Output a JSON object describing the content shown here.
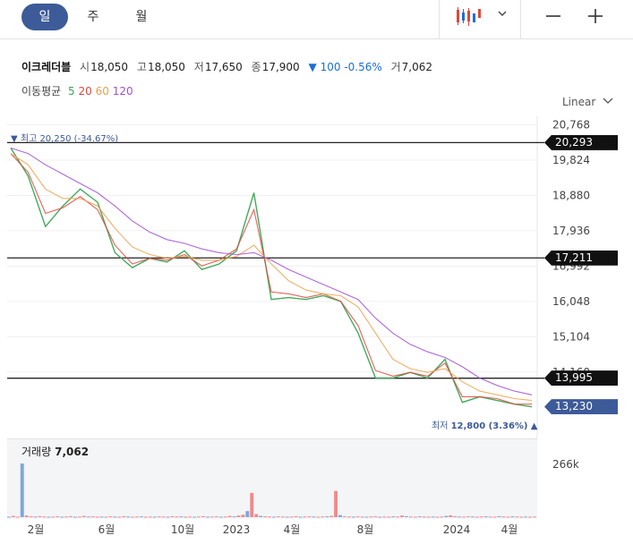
{
  "tabs": [
    {
      "label": "일",
      "active": true
    },
    {
      "label": "주",
      "active": false
    },
    {
      "label": "월",
      "active": false
    }
  ],
  "toolbar": {
    "chart_type_icon": "candlestick-icon",
    "dropdown_icon": "chevron-down-icon",
    "zoom_out_icon": "minus-icon",
    "zoom_in_icon": "plus-icon"
  },
  "quote": {
    "name": "이크레더블",
    "open_label": "시",
    "open": "18,050",
    "high_label": "고",
    "high": "18,050",
    "low_label": "저",
    "low": "17,650",
    "close_label": "종",
    "close": "17,900",
    "change_arrow": "▼",
    "change": "100",
    "change_pct": "-0.56%",
    "volume_label": "거",
    "volume": "7,062"
  },
  "moving_averages": {
    "label": "이동평균",
    "items": [
      {
        "period": "5",
        "color": "#3aa655"
      },
      {
        "period": "20",
        "color": "#e0463c"
      },
      {
        "period": "60",
        "color": "#f0a04b"
      },
      {
        "period": "120",
        "color": "#a24fd6"
      }
    ]
  },
  "scale_mode": "Linear",
  "price_tags": [
    {
      "value": "20,293",
      "price": 20293,
      "current": false
    },
    {
      "value": "17,211",
      "price": 17211,
      "current": false
    },
    {
      "value": "13,995",
      "price": 13995,
      "current": false
    },
    {
      "value": "13,230",
      "price": 13230,
      "current": true
    }
  ],
  "annotations": {
    "high": "▼ 최고 20,250 (-34.67%)",
    "low_label": "최저",
    "low_value": "12,800 (3.36%)",
    "low_arrow": "▲"
  },
  "volume_panel": {
    "label": "거래량",
    "value": "7,062",
    "axis_tick": "266k"
  },
  "colors": {
    "accent": "#3d5a99",
    "up": "#e0463c",
    "down": "#1a6fd6"
  },
  "chart_data": {
    "type": "line",
    "y_axis_ticks": [
      "20,768",
      "19,824",
      "18,880",
      "17,936",
      "16,992",
      "16,048",
      "15,104",
      "14,160"
    ],
    "y_axis_values": [
      20768,
      19824,
      18880,
      17936,
      16992,
      16048,
      15104,
      14160
    ],
    "ylim": [
      12672,
      20900
    ],
    "x_axis_ticks": [
      "2월",
      "6월",
      "10월",
      "2023",
      "4월",
      "8월",
      "2024",
      "4월"
    ],
    "series": [
      {
        "name": "5",
        "values": [
          20150,
          19400,
          18050,
          18600,
          19050,
          18700,
          17350,
          16950,
          17200,
          17100,
          17400,
          16900,
          17050,
          17400,
          18950,
          16100,
          16150,
          16100,
          16200,
          16050,
          15200,
          14000,
          14000,
          14150,
          14000,
          14500,
          13350,
          13500,
          13400,
          13300,
          13230
        ]
      },
      {
        "name": "20",
        "values": [
          20000,
          19500,
          18400,
          18550,
          18850,
          18500,
          17550,
          17050,
          17200,
          17150,
          17300,
          17000,
          17150,
          17450,
          18500,
          16300,
          16250,
          16150,
          16250,
          16050,
          15400,
          14200,
          14050,
          14150,
          14050,
          14400,
          13500,
          13500,
          13450,
          13300,
          13300
        ]
      },
      {
        "name": "60",
        "values": [
          20000,
          19700,
          19050,
          18800,
          18800,
          18600,
          18000,
          17500,
          17300,
          17200,
          17250,
          17150,
          17150,
          17250,
          17550,
          17050,
          16600,
          16350,
          16250,
          16200,
          15900,
          15200,
          14500,
          14250,
          14150,
          14250,
          13900,
          13650,
          13550,
          13450,
          13400
        ]
      },
      {
        "name": "120",
        "values": [
          20150,
          20000,
          19700,
          19450,
          19200,
          18950,
          18600,
          18200,
          17900,
          17700,
          17600,
          17450,
          17350,
          17300,
          17350,
          17150,
          16900,
          16700,
          16500,
          16300,
          16100,
          15600,
          15200,
          14900,
          14700,
          14550,
          14300,
          14000,
          13800,
          13650,
          13550
        ]
      }
    ],
    "volume_values": [
      2,
      6,
      2,
      266,
      8,
      4,
      3,
      5,
      3,
      2,
      3,
      4,
      2,
      3,
      5,
      2,
      3,
      6,
      3,
      4,
      2,
      3,
      2,
      4,
      3,
      2,
      5,
      3,
      2,
      3,
      4,
      2,
      3,
      2,
      4,
      3,
      2,
      5,
      3,
      4,
      2,
      3,
      2,
      3,
      5,
      2,
      3,
      4,
      2,
      3,
      6,
      4,
      8,
      12,
      30,
      120,
      15,
      6,
      4,
      3,
      2,
      4,
      3,
      2,
      3,
      5,
      2,
      3,
      4,
      3,
      2,
      3,
      4,
      6,
      130,
      10,
      4,
      3,
      2,
      4,
      3,
      2,
      3,
      4,
      2,
      3,
      2,
      4,
      3,
      8,
      5,
      3,
      2,
      4,
      3,
      2,
      3,
      2,
      3,
      6,
      9,
      5,
      3,
      2,
      4,
      3,
      2,
      3,
      4,
      3,
      2,
      5,
      3,
      2,
      4,
      3,
      2,
      3,
      2,
      3
    ],
    "volume_ylim": [
      0,
      266
    ]
  }
}
